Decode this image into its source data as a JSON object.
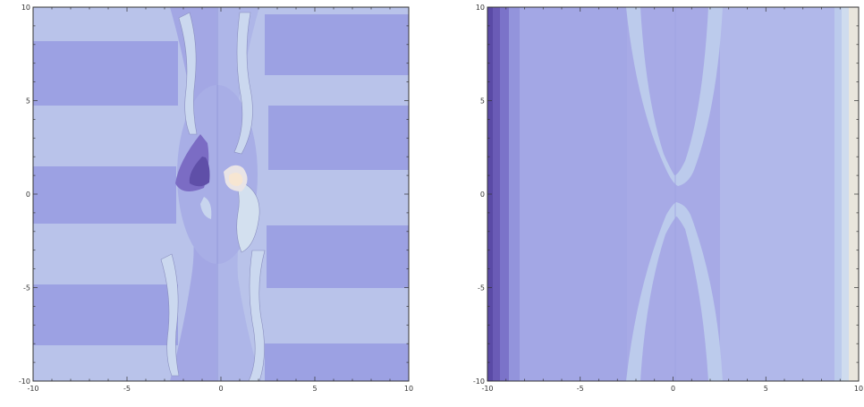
{
  "chart_data": [
    {
      "type": "contour",
      "title": "",
      "xlabel": "",
      "ylabel": "",
      "xlim": [
        -10,
        10
      ],
      "ylim": [
        -10,
        10
      ],
      "xticks": [
        -10,
        -5,
        0,
        5,
        10
      ],
      "yticks": [
        -10,
        -5,
        0,
        5,
        10
      ],
      "xtick_labels": [
        "-10",
        "-5",
        "0",
        "5",
        "10"
      ],
      "ytick_labels": [
        "-10",
        "-5",
        "0",
        "5",
        "10"
      ],
      "grid": false,
      "legend": "none",
      "colors": {
        "light": "#b9c3ea",
        "mid": "#a0a5e4",
        "dark": "#9393dd",
        "pale": "#d3e0ef",
        "deep": "#5f4fa8",
        "cream": "#f7e6d2"
      }
    },
    {
      "type": "contour",
      "title": "",
      "xlabel": "",
      "ylabel": "",
      "xlim": [
        -10,
        10
      ],
      "ylim": [
        -10,
        10
      ],
      "xticks": [
        -10,
        -5,
        0,
        5,
        10
      ],
      "yticks": [
        -10,
        -5,
        0,
        5,
        10
      ],
      "xtick_labels": [
        "-10",
        "-5",
        "0",
        "5",
        "10"
      ],
      "ytick_labels": [
        "-10",
        "-5",
        "0",
        "5",
        "10"
      ],
      "grid": false,
      "legend": "none",
      "colors": {
        "base": "#a7aae6",
        "lighter": "#b1b8ea",
        "lobe": "#bccbec",
        "edge_deep": "#5a4aa6",
        "edge_dark": "#7b73c9",
        "edge_mid": "#9394dc",
        "right_pale": "#cfdcee",
        "right_cream": "#e9e6dd"
      }
    }
  ]
}
